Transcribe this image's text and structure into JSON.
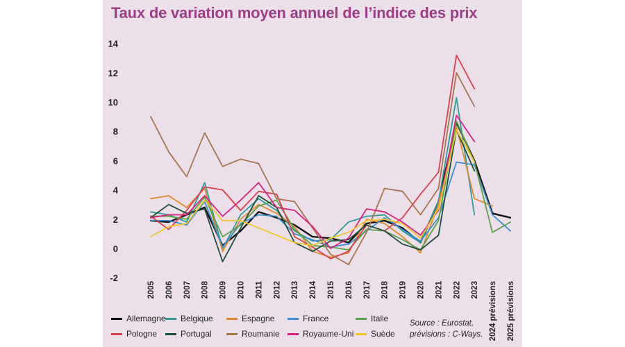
{
  "chart_data": {
    "type": "line",
    "title": "Taux de variation moyen annuel de l’indice des prix",
    "xlabel": "",
    "ylabel": "",
    "ylim": [
      -2,
      14
    ],
    "yticks": [
      -2,
      0,
      2,
      4,
      6,
      8,
      10,
      12,
      14
    ],
    "grid": false,
    "legend_position": "bottom",
    "categories": [
      "2005",
      "2006",
      "2007",
      "2008",
      "2009",
      "2010",
      "2011",
      "2012",
      "2013",
      "2014",
      "2015",
      "2016",
      "2017",
      "2018",
      "2019",
      "2020",
      "2021",
      "2022",
      "2023",
      "2024 prévisions",
      "2025 prévisions"
    ],
    "series": [
      {
        "name": "Allemagne",
        "color": "#111111",
        "values": [
          1.9,
          1.8,
          2.3,
          2.8,
          0.2,
          1.2,
          2.5,
          2.1,
          1.6,
          0.8,
          0.7,
          0.4,
          1.7,
          1.9,
          1.4,
          0.4,
          3.2,
          8.6,
          6.0,
          2.4,
          2.1
        ]
      },
      {
        "name": "Belgique",
        "color": "#2f9a9a",
        "values": [
          2.5,
          2.3,
          1.8,
          4.5,
          0.0,
          2.3,
          3.4,
          2.6,
          1.2,
          0.5,
          0.6,
          1.8,
          2.2,
          2.3,
          1.2,
          0.4,
          3.2,
          10.3,
          2.3,
          null,
          null
        ]
      },
      {
        "name": "Espagne",
        "color": "#e0892c",
        "values": [
          3.4,
          3.6,
          2.8,
          4.1,
          -0.2,
          2.0,
          3.0,
          2.4,
          1.5,
          -0.2,
          -0.6,
          -0.3,
          2.0,
          1.7,
          0.8,
          -0.3,
          3.0,
          8.3,
          3.4,
          2.9,
          null
        ]
      },
      {
        "name": "France",
        "color": "#3a8fd0",
        "values": [
          1.9,
          1.9,
          1.6,
          3.2,
          0.1,
          1.7,
          2.3,
          2.2,
          1.0,
          0.6,
          0.1,
          0.3,
          1.2,
          2.1,
          1.3,
          0.5,
          2.1,
          5.9,
          5.7,
          2.3,
          1.2
        ]
      },
      {
        "name": "Italie",
        "color": "#5aa04a",
        "values": [
          2.2,
          2.2,
          2.0,
          3.5,
          0.8,
          1.6,
          2.9,
          3.3,
          1.3,
          0.2,
          0.1,
          -0.1,
          1.3,
          1.2,
          0.6,
          -0.1,
          1.9,
          8.7,
          5.9,
          1.1,
          1.8
        ]
      },
      {
        "name": "Pologne",
        "color": "#d9404f",
        "values": [
          2.2,
          1.3,
          2.6,
          4.2,
          4.0,
          2.6,
          3.9,
          3.7,
          0.8,
          0.1,
          -0.7,
          -0.2,
          1.6,
          1.2,
          2.1,
          3.7,
          5.2,
          13.2,
          10.9,
          null,
          null
        ]
      },
      {
        "name": "Portugal",
        "color": "#1e4d3a",
        "values": [
          2.1,
          3.0,
          2.4,
          2.7,
          -0.9,
          1.4,
          3.6,
          2.8,
          0.4,
          -0.2,
          0.5,
          0.6,
          1.6,
          1.2,
          0.3,
          -0.1,
          0.9,
          8.1,
          5.3,
          null,
          null
        ]
      },
      {
        "name": "Roumanie",
        "color": "#a87450",
        "values": [
          9.0,
          6.6,
          4.9,
          7.9,
          5.6,
          6.1,
          5.8,
          3.4,
          3.2,
          1.4,
          -0.4,
          -1.1,
          1.1,
          4.1,
          3.9,
          2.3,
          4.1,
          12.0,
          9.7,
          null,
          null
        ]
      },
      {
        "name": "Royaume-Uni",
        "color": "#d6237f",
        "values": [
          2.1,
          2.3,
          2.3,
          3.6,
          2.2,
          3.3,
          4.5,
          2.8,
          2.6,
          1.5,
          0.0,
          0.7,
          2.7,
          2.5,
          1.8,
          0.9,
          2.6,
          9.1,
          7.3,
          null,
          null
        ]
      },
      {
        "name": "Suède",
        "color": "#efc62e",
        "values": [
          0.8,
          1.5,
          1.7,
          3.3,
          1.9,
          1.9,
          1.4,
          0.9,
          0.4,
          0.2,
          0.7,
          1.1,
          1.9,
          2.0,
          1.7,
          0.7,
          2.7,
          8.1,
          5.9,
          null,
          null
        ]
      }
    ],
    "source_note": "Source : Eurostat, prévisions : C-Ways."
  },
  "legend_rows": [
    [
      "Allemagne",
      "Belgique",
      "Espagne",
      "France",
      "Italie"
    ],
    [
      "Pologne",
      "Portugal",
      "Roumanie",
      "Royaume-Uni",
      "Suède"
    ]
  ]
}
